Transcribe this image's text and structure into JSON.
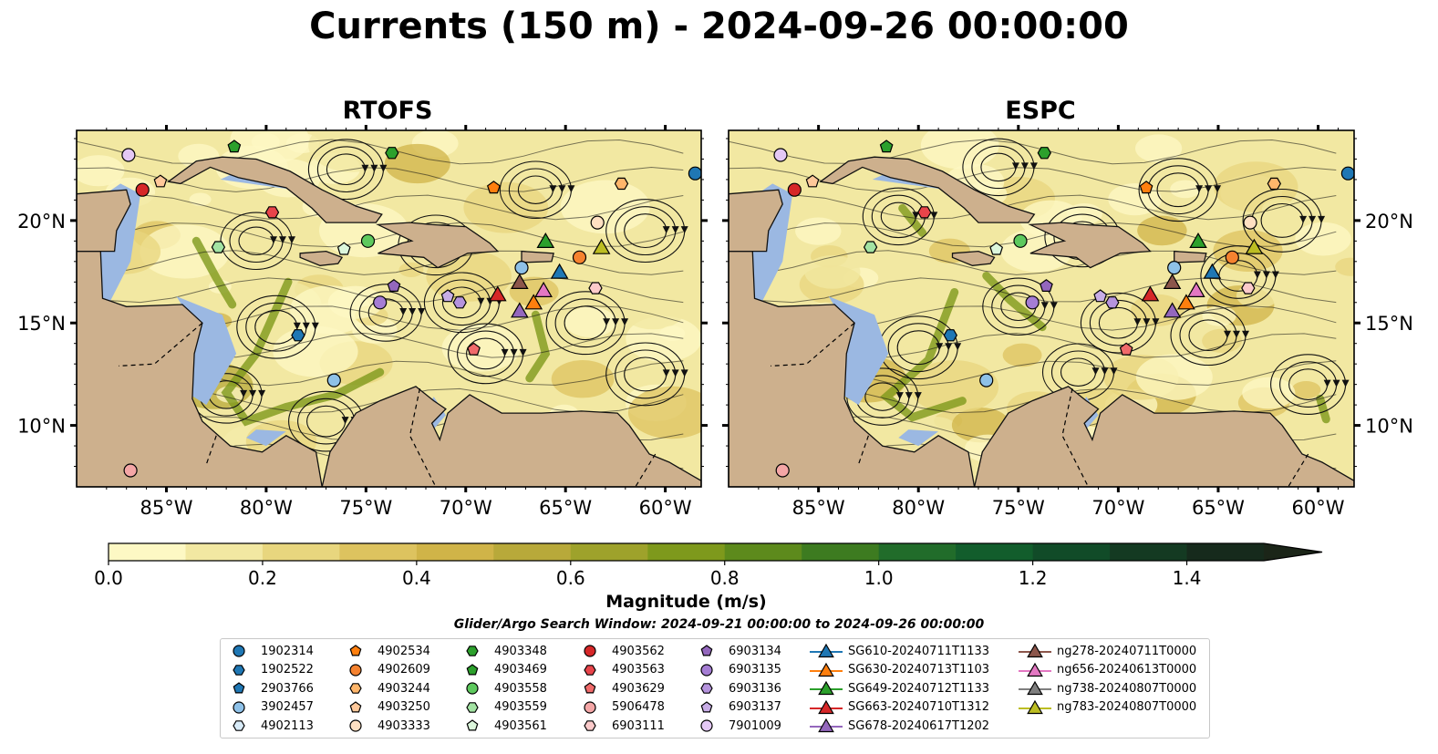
{
  "title": "Currents (150 m) - 2024-09-26 00:00:00",
  "panels": [
    {
      "title": "RTOFS"
    },
    {
      "title": "ESPC"
    }
  ],
  "axes": {
    "x_ticks": [
      "85°W",
      "80°W",
      "75°W",
      "70°W",
      "65°W",
      "60°W"
    ],
    "x_values": [
      -85,
      -80,
      -75,
      -70,
      -65,
      -60
    ],
    "y_ticks": [
      "20°N",
      "15°N",
      "10°N"
    ],
    "y_values": [
      20,
      15,
      10
    ],
    "xlim": [
      -89.5,
      -58.2
    ],
    "ylim": [
      7.0,
      24.4
    ]
  },
  "colorbar": {
    "label": "Magnitude (m/s)",
    "ticks": [
      "0.0",
      "0.2",
      "0.4",
      "0.6",
      "0.8",
      "1.0",
      "1.2",
      "1.4"
    ],
    "tick_values": [
      0,
      0.2,
      0.4,
      0.6,
      0.8,
      1.0,
      1.2,
      1.4
    ],
    "range": [
      0,
      1.5
    ],
    "colors": [
      "#fdf8c4",
      "#f2e8a2",
      "#e8d67e",
      "#ddc35f",
      "#d0b448",
      "#b8a93a",
      "#9ea22b",
      "#7e991c",
      "#5d8a1c",
      "#3d7b20",
      "#216c2a",
      "#125d2c",
      "#114b28",
      "#143a22",
      "#162a1c",
      "#1b2518"
    ],
    "extend": "max"
  },
  "search_window": "Glider/Argo Search Window: 2024-09-21 00:00:00 to 2024-09-26 00:00:00",
  "colors": {
    "land": "#cdb08d",
    "shallow_water": "#9bb8e2",
    "coast": "#111111"
  },
  "chart_data": {
    "type": "scatter",
    "description_units": "longitude (degrees, negative = W), latitude (degrees N)",
    "series": [
      {
        "name": "1902314",
        "marker": "circle",
        "color": "#1f77b4",
        "points": [
          [
            -58.5,
            22.3
          ]
        ]
      },
      {
        "name": "1902522",
        "marker": "hexagon",
        "color": "#1f77b4",
        "points": [
          [
            -78.4,
            14.4
          ]
        ]
      },
      {
        "name": "2903766",
        "marker": "pentagon",
        "color": "#1f77b4",
        "points": []
      },
      {
        "name": "3902457",
        "marker": "circle",
        "color": "#8ec1e8",
        "points": [
          [
            -67.2,
            17.7
          ],
          [
            -76.6,
            12.2
          ]
        ]
      },
      {
        "name": "4902113",
        "marker": "hexagon",
        "color": "#d8ebf8",
        "points": []
      },
      {
        "name": "4902534",
        "marker": "pentagon",
        "color": "#ff7f0e",
        "points": [
          [
            -68.6,
            21.6
          ]
        ]
      },
      {
        "name": "4902609",
        "marker": "circle",
        "color": "#f5822f",
        "points": [
          [
            -64.3,
            18.2
          ]
        ]
      },
      {
        "name": "4903244",
        "marker": "hexagon",
        "color": "#ffb66b",
        "points": [
          [
            -62.2,
            21.8
          ]
        ]
      },
      {
        "name": "4903250",
        "marker": "pentagon",
        "color": "#ffc89a",
        "points": [
          [
            -85.3,
            21.9
          ]
        ]
      },
      {
        "name": "4903333",
        "marker": "circle",
        "color": "#ffe0c2",
        "points": [
          [
            -63.4,
            19.9
          ]
        ]
      },
      {
        "name": "4903348",
        "marker": "hexagon",
        "color": "#2ca02c",
        "points": [
          [
            -73.7,
            23.3
          ]
        ]
      },
      {
        "name": "4903469",
        "marker": "pentagon",
        "color": "#2ca02c",
        "points": [
          [
            -81.6,
            23.6
          ]
        ]
      },
      {
        "name": "4903558",
        "marker": "circle",
        "color": "#5ec95e",
        "points": [
          [
            -74.9,
            19.0
          ]
        ]
      },
      {
        "name": "4903559",
        "marker": "hexagon",
        "color": "#a3e3a3",
        "points": [
          [
            -82.4,
            18.7
          ]
        ]
      },
      {
        "name": "4903561",
        "marker": "pentagon",
        "color": "#dcf7dc",
        "points": [
          [
            -76.1,
            18.6
          ]
        ]
      },
      {
        "name": "4903562",
        "marker": "circle",
        "color": "#d62728",
        "points": [
          [
            -86.2,
            21.5
          ]
        ]
      },
      {
        "name": "4903563",
        "marker": "hexagon",
        "color": "#e8444a",
        "points": [
          [
            -79.7,
            20.4
          ]
        ]
      },
      {
        "name": "4903629",
        "marker": "pentagon",
        "color": "#f06a6a",
        "points": [
          [
            -69.6,
            13.7
          ]
        ]
      },
      {
        "name": "5906478",
        "marker": "circle",
        "color": "#f4a6a6",
        "points": [
          [
            -86.8,
            7.8
          ]
        ]
      },
      {
        "name": "6903111",
        "marker": "hexagon",
        "color": "#fbcaca",
        "points": [
          [
            -63.5,
            16.7
          ]
        ]
      },
      {
        "name": "6903134",
        "marker": "pentagon",
        "color": "#9467bd",
        "points": [
          [
            -73.6,
            16.8
          ]
        ]
      },
      {
        "name": "6903135",
        "marker": "circle",
        "color": "#a57dd4",
        "points": [
          [
            -74.3,
            16.0
          ]
        ]
      },
      {
        "name": "6903136",
        "marker": "hexagon",
        "color": "#b593dd",
        "points": [
          [
            -70.3,
            16.0
          ]
        ]
      },
      {
        "name": "6903137",
        "marker": "pentagon",
        "color": "#c8ade6",
        "points": [
          [
            -70.9,
            16.3
          ]
        ]
      },
      {
        "name": "7901009",
        "marker": "circle",
        "color": "#e4c8f5",
        "points": [
          [
            -86.9,
            23.2
          ]
        ]
      },
      {
        "name": "SG610-20240711T1133",
        "marker": "triangle",
        "color": "#1f77b4",
        "points": [
          [
            -65.3,
            17.5
          ]
        ]
      },
      {
        "name": "SG630-20240713T1103",
        "marker": "triangle",
        "color": "#ff7f0e",
        "points": [
          [
            -66.6,
            16.0
          ]
        ]
      },
      {
        "name": "SG649-20240712T1133",
        "marker": "triangle",
        "color": "#2ca02c",
        "points": [
          [
            -66.0,
            19.0
          ]
        ]
      },
      {
        "name": "SG663-20240710T1312",
        "marker": "triangle",
        "color": "#d62728",
        "points": [
          [
            -68.4,
            16.4
          ]
        ]
      },
      {
        "name": "SG678-20240617T1202",
        "marker": "triangle",
        "color": "#9467bd",
        "points": [
          [
            -67.3,
            15.6
          ]
        ]
      },
      {
        "name": "ng278-20240711T0000",
        "marker": "triangle",
        "color": "#8c564b",
        "points": [
          [
            -67.3,
            17.0
          ]
        ]
      },
      {
        "name": "ng656-20240613T0000",
        "marker": "triangle",
        "color": "#e377c2",
        "points": [
          [
            -66.1,
            16.6
          ]
        ]
      },
      {
        "name": "ng738-20240807T0000",
        "marker": "triangle",
        "color": "#7f7f7f",
        "points": []
      },
      {
        "name": "ng783-20240807T0000",
        "marker": "triangle",
        "color": "#bcbd22",
        "points": [
          [
            -63.2,
            18.7
          ]
        ]
      }
    ]
  }
}
